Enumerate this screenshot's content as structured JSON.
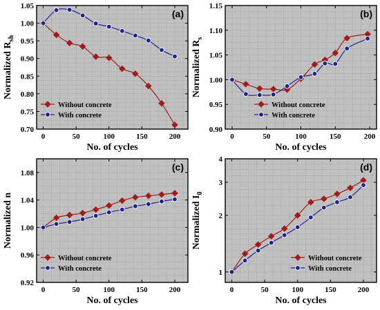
{
  "colors": {
    "plot_bg": "#c0c0c0",
    "grid": "#9a9a9a",
    "series_without": "#a11d1d",
    "series_with": "#23238f"
  },
  "chart_data": [
    {
      "type": "line",
      "panel_tag": "(a)",
      "xlabel": "No. of cycles",
      "ylabel": "Normalized R",
      "ylabel_sub": "sh",
      "xlim": [
        -10,
        220
      ],
      "ylim": [
        0.7,
        1.05
      ],
      "xticks": [
        0,
        50,
        100,
        150,
        200
      ],
      "yticks": [
        0.7,
        0.75,
        0.8,
        0.85,
        0.9,
        0.95,
        1.0,
        1.05
      ],
      "ytick_labels": [
        "0.70",
        "0.75",
        "0.80",
        "0.85",
        "0.90",
        "0.95",
        "1.00",
        "1.05"
      ],
      "grid": true,
      "legend": "bottom-left",
      "series": [
        {
          "name": "Without concrete",
          "marker": "diamond",
          "x": [
            0,
            20,
            40,
            60,
            80,
            100,
            120,
            140,
            160,
            180,
            200
          ],
          "y": [
            1.0,
            0.967,
            0.944,
            0.934,
            0.905,
            0.902,
            0.871,
            0.857,
            0.822,
            0.773,
            0.712
          ]
        },
        {
          "name": "With concrete",
          "marker": "circle",
          "x": [
            0,
            20,
            40,
            60,
            80,
            100,
            120,
            140,
            160,
            180,
            200
          ],
          "y": [
            1.0,
            1.037,
            1.038,
            1.022,
            0.999,
            0.99,
            0.978,
            0.965,
            0.951,
            0.924,
            0.906
          ]
        }
      ]
    },
    {
      "type": "line",
      "panel_tag": "(b)",
      "xlabel": "No. of cycles",
      "ylabel": "Normalized R",
      "ylabel_sub": "s",
      "xlim": [
        -10,
        210
      ],
      "ylim": [
        0.9,
        1.15
      ],
      "xticks": [
        0,
        50,
        100,
        150,
        200
      ],
      "yticks": [
        0.9,
        0.95,
        1.0,
        1.05,
        1.1,
        1.15
      ],
      "ytick_labels": [
        "0.90",
        "0.95",
        "1.00",
        "1.05",
        "1.10",
        "1.15"
      ],
      "grid": true,
      "legend": "bottom-center",
      "series": [
        {
          "name": "Without concrete",
          "marker": "diamond",
          "x": [
            0,
            20,
            40,
            60,
            80,
            100,
            120,
            135,
            150,
            167,
            197
          ],
          "y": [
            1.0,
            0.991,
            0.982,
            0.981,
            0.98,
            1.002,
            1.031,
            1.04,
            1.054,
            1.084,
            1.092
          ]
        },
        {
          "name": "With concrete",
          "marker": "circle",
          "x": [
            0,
            20,
            40,
            60,
            80,
            100,
            120,
            135,
            150,
            167,
            197
          ],
          "y": [
            1.0,
            0.971,
            0.969,
            0.97,
            0.987,
            1.005,
            1.012,
            1.033,
            1.032,
            1.063,
            1.083
          ]
        }
      ]
    },
    {
      "type": "line",
      "panel_tag": "(c)",
      "xlabel": "No. of cycles",
      "ylabel": "Normalized n",
      "ylabel_sub": "",
      "xlim": [
        -10,
        220
      ],
      "ylim": [
        0.92,
        1.1
      ],
      "xticks": [
        0,
        50,
        100,
        150,
        200
      ],
      "yticks": [
        0.92,
        0.96,
        1.0,
        1.04,
        1.08
      ],
      "ytick_labels": [
        "0.92",
        "0.96",
        "1.00",
        "1.04",
        "1.08"
      ],
      "grid": true,
      "legend": "bottom-left",
      "series": [
        {
          "name": "Without concrete",
          "marker": "diamond",
          "x": [
            0,
            20,
            40,
            60,
            80,
            100,
            120,
            140,
            160,
            180,
            200
          ],
          "y": [
            1.0,
            1.014,
            1.018,
            1.021,
            1.026,
            1.032,
            1.039,
            1.044,
            1.046,
            1.048,
            1.05
          ]
        },
        {
          "name": "With concrete",
          "marker": "circle",
          "x": [
            0,
            20,
            40,
            60,
            80,
            100,
            120,
            140,
            160,
            180,
            200
          ],
          "y": [
            1.0,
            1.005,
            1.008,
            1.012,
            1.017,
            1.022,
            1.026,
            1.031,
            1.034,
            1.038,
            1.041
          ]
        }
      ]
    },
    {
      "type": "line",
      "panel_tag": "(d)",
      "xlabel": "No. of cycles",
      "ylabel": "Normalized I",
      "ylabel_sub": "0",
      "xlim": [
        -10,
        220
      ],
      "ylim": [
        0.88,
        4.0
      ],
      "yscale": "log",
      "xticks": [
        0,
        50,
        100,
        150,
        200
      ],
      "yticks": [
        1,
        2,
        3,
        4
      ],
      "ytick_labels": [
        "1",
        "2",
        "3",
        "4"
      ],
      "grid": true,
      "legend": "bottom-right",
      "series": [
        {
          "name": "Without concrete",
          "marker": "diamond",
          "x": [
            0,
            20,
            40,
            60,
            80,
            100,
            120,
            140,
            160,
            180,
            200
          ],
          "y": [
            1.0,
            1.25,
            1.4,
            1.55,
            1.7,
            2.0,
            2.35,
            2.45,
            2.6,
            2.8,
            3.07
          ]
        },
        {
          "name": "With concrete",
          "marker": "circle",
          "x": [
            0,
            20,
            40,
            60,
            80,
            100,
            120,
            140,
            160,
            180,
            200
          ],
          "y": [
            1.0,
            1.15,
            1.3,
            1.43,
            1.57,
            1.73,
            1.95,
            2.2,
            2.35,
            2.5,
            2.9
          ]
        }
      ]
    }
  ]
}
